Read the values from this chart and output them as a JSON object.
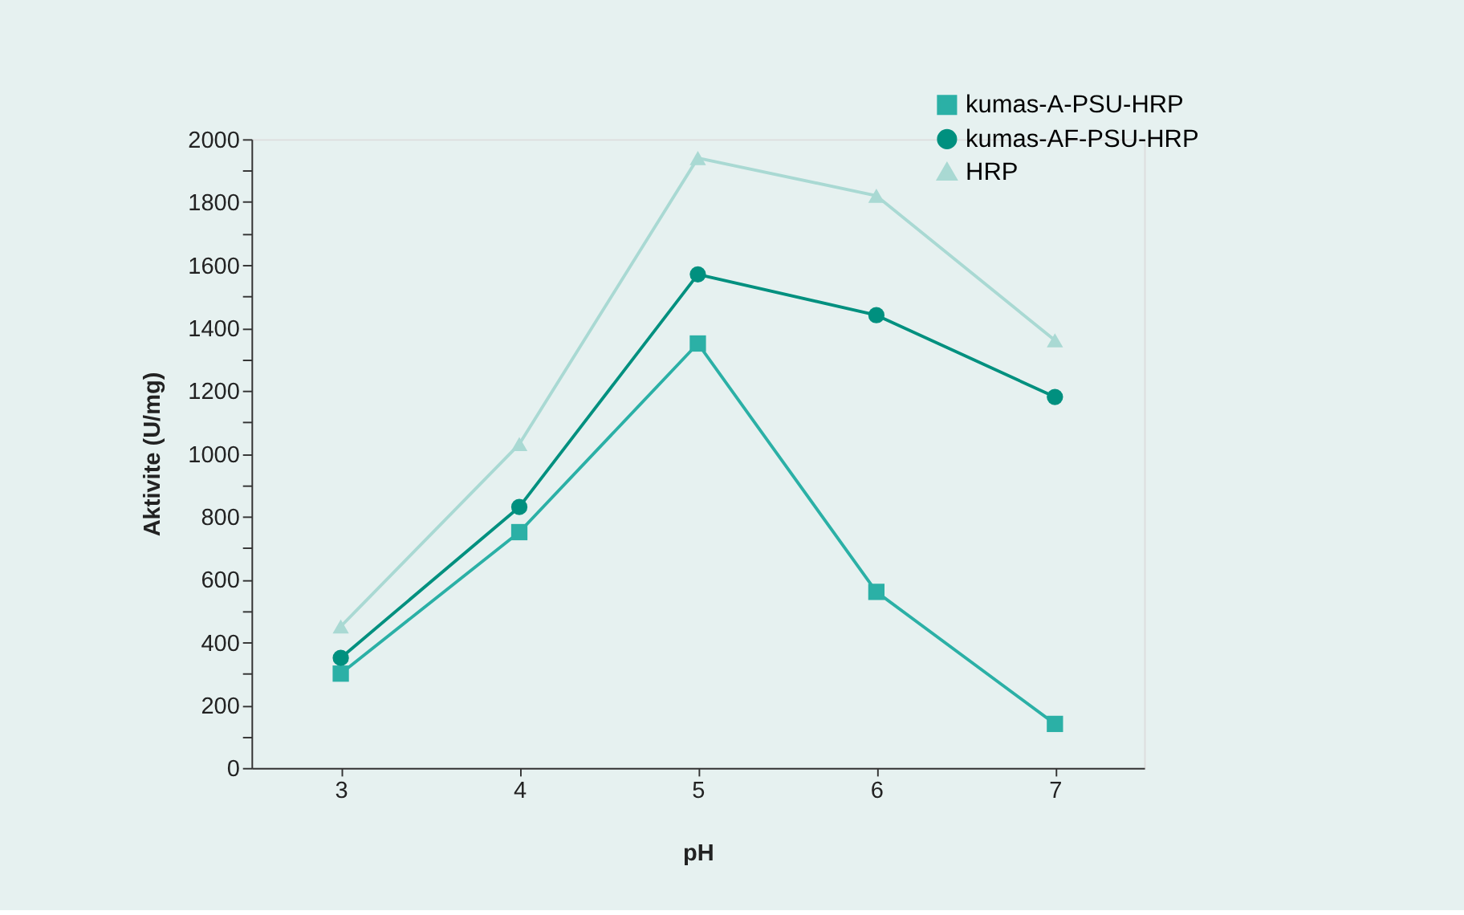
{
  "chart_data": {
    "type": "line",
    "xlabel": "pH",
    "ylabel": "Aktivite (U/mg)",
    "x": [
      3,
      4,
      5,
      6,
      7
    ],
    "series": [
      {
        "name": "kumas-A-PSU-HRP",
        "color": "#2bb0a6",
        "marker": "square",
        "values": [
          300,
          750,
          1350,
          560,
          140
        ]
      },
      {
        "name": "kumas-AF-PSU-HRP",
        "color": "#00907f",
        "marker": "circle",
        "values": [
          350,
          830,
          1570,
          1440,
          1180
        ]
      },
      {
        "name": "HRP",
        "color": "#a9d9d3",
        "marker": "triangle",
        "values": [
          450,
          1030,
          1940,
          1820,
          1360
        ]
      }
    ],
    "xlim": [
      2.5,
      7.5
    ],
    "xticks": [
      3,
      4,
      5,
      6,
      7
    ],
    "ylim": [
      0,
      2000
    ],
    "yticks": [
      0,
      {
        "value": 100,
        "label": null
      },
      200,
      {
        "value": 300,
        "label": null
      },
      400,
      {
        "value": 500,
        "label": null
      },
      600,
      {
        "value": 700,
        "label": null
      },
      800,
      {
        "value": 900,
        "label": null
      },
      1000,
      {
        "value": 1100,
        "label": null
      },
      1200,
      {
        "value": 1300,
        "label": null
      },
      1400,
      {
        "value": 1500,
        "label": null
      },
      1600,
      {
        "value": 1700,
        "label": null
      },
      1800,
      {
        "value": 1900,
        "label": null
      },
      2000
    ],
    "grid": false,
    "legend": "top right"
  }
}
